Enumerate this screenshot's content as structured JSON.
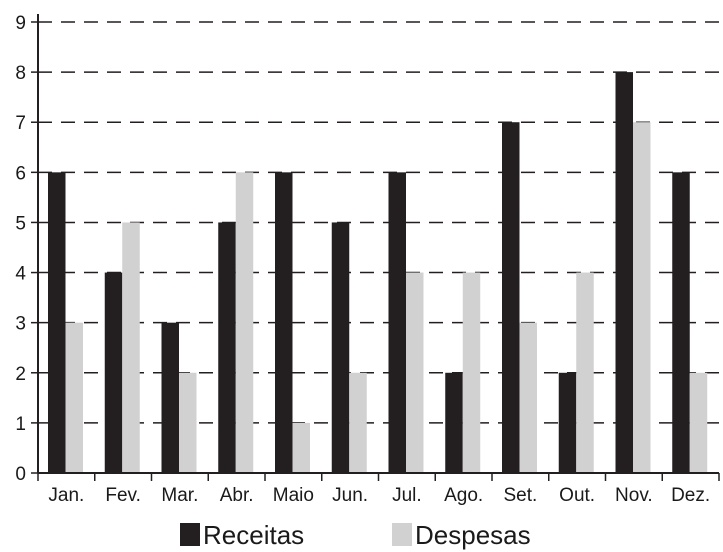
{
  "chart_data": {
    "type": "bar",
    "categories": [
      "Jan.",
      "Fev.",
      "Mar.",
      "Abr.",
      "Maio",
      "Jun.",
      "Jul.",
      "Ago.",
      "Set.",
      "Out.",
      "Nov.",
      "Dez."
    ],
    "series": [
      {
        "name": "Receitas",
        "color": "#231f20",
        "values": [
          6,
          4,
          3,
          5,
          6,
          5,
          6,
          2,
          7,
          2,
          8,
          6
        ]
      },
      {
        "name": "Despesas",
        "color": "#d1d1d1",
        "values": [
          3,
          5,
          2,
          6,
          1,
          2,
          4,
          4,
          3,
          4,
          7,
          2
        ]
      }
    ],
    "title": "",
    "xlabel": "",
    "ylabel": "",
    "ylim": [
      0,
      9
    ],
    "yticks": [
      0,
      1,
      2,
      3,
      4,
      5,
      6,
      7,
      8,
      9
    ],
    "grid": "horizontal-dashed",
    "legend_placement": "bottom"
  }
}
